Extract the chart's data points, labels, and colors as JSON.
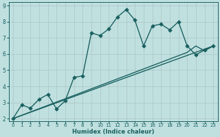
{
  "bg_color": "#c0e0e0",
  "grid_color": "#b0c8c8",
  "line_color": "#1a6060",
  "xlabel": "Humidex (Indice chaleur)",
  "xlim": [
    -0.5,
    23.5
  ],
  "ylim": [
    1.85,
    9.2
  ],
  "xticks": [
    0,
    1,
    2,
    3,
    4,
    5,
    6,
    7,
    8,
    9,
    10,
    11,
    12,
    13,
    14,
    15,
    16,
    17,
    18,
    19,
    20,
    21,
    22,
    23
  ],
  "yticks": [
    2,
    3,
    4,
    5,
    6,
    7,
    8,
    9
  ],
  "series": [
    {
      "x": [
        0,
        1,
        2,
        3,
        4,
        5,
        6,
        7,
        8,
        9,
        10,
        11,
        12,
        13,
        14,
        15,
        16,
        17,
        18,
        19,
        20,
        21,
        22,
        23
      ],
      "y": [
        2.0,
        2.85,
        2.65,
        3.2,
        3.5,
        2.6,
        3.1,
        4.55,
        4.65,
        7.3,
        7.15,
        7.55,
        8.3,
        8.75,
        8.1,
        6.5,
        7.75,
        7.85,
        7.5,
        8.0,
        6.5,
        5.95,
        6.25,
        6.5
      ],
      "marker": "D",
      "markersize": 2.8,
      "linewidth": 1.0
    },
    {
      "x": [
        0,
        23
      ],
      "y": [
        2.0,
        6.5
      ],
      "marker": null,
      "linewidth": 1.0
    },
    {
      "x": [
        0,
        20,
        21,
        22,
        23
      ],
      "y": [
        2.0,
        6.1,
        6.5,
        6.2,
        6.5
      ],
      "marker": null,
      "linewidth": 1.0
    }
  ]
}
